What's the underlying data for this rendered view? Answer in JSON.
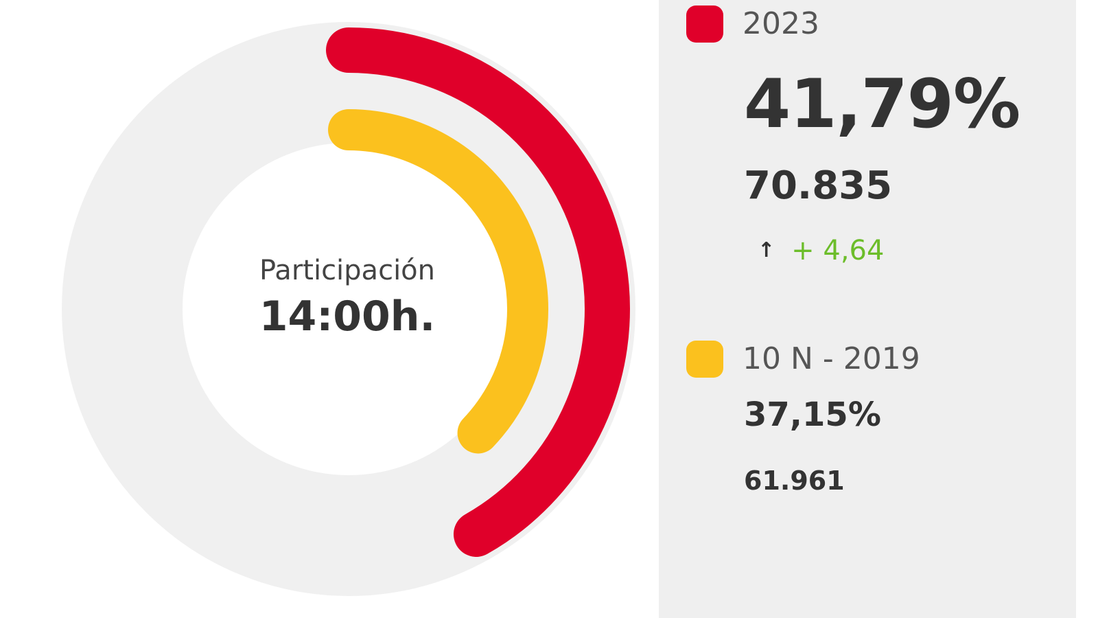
{
  "gauge": {
    "title": "Participación",
    "time": "14:00h."
  },
  "series": [
    {
      "label": "2023",
      "color": "#e0002a",
      "percent_text": "41,79%",
      "count": "70.835",
      "change_icon": "arrow-up-icon",
      "change_symbol": "↑",
      "change": "+ 4,64",
      "change_color": "#6cbd2a",
      "value": 41.79
    },
    {
      "label": "10 N - 2019",
      "color": "#fbc11e",
      "percent_text": "37,15%",
      "count": "61.961",
      "value": 37.15
    }
  ],
  "track_color": "#f0f0f0"
}
